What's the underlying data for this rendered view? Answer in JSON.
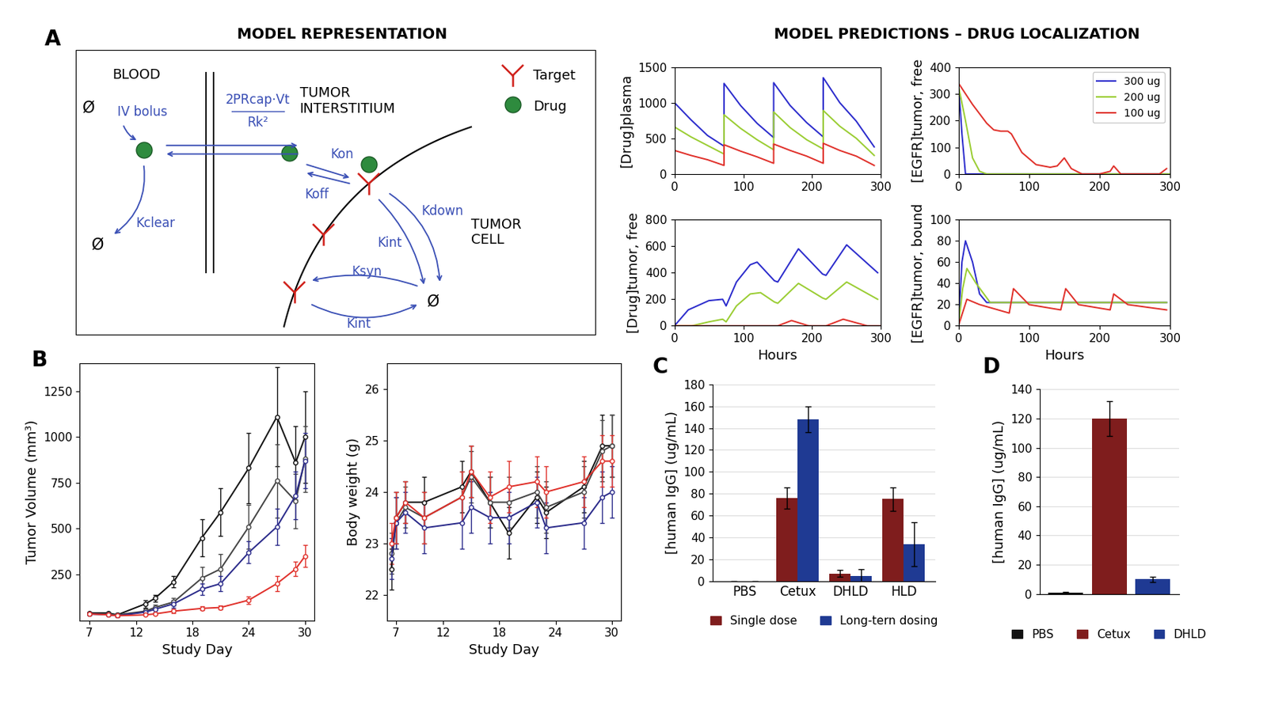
{
  "panel_labels": [
    "A",
    "B",
    "C",
    "D"
  ],
  "headers": [
    "MODEL REPRESENTATION",
    "MODEL PREDICTIONS – DRUG LOCALIZATION"
  ],
  "diagram": {
    "blood": "BLOOD",
    "interstitium": "TUMOR\nINTERSTITIUM",
    "cell": "TUMOR\nCELL",
    "key_target": "Target",
    "key_drug": "Drug",
    "bolus": "IV bolus",
    "null": "Ø",
    "transport_top": "2PRcap·Vt",
    "transport_bottom": "Rk²",
    "clear": "Kclear",
    "on": "Kon",
    "off": "Koff",
    "int_bound": "Kint",
    "down": "Kdown",
    "syn": "Ksyn",
    "int_free": "Kint"
  },
  "chart_data": [
    {
      "type": "line",
      "ylabel": "[Drug]plasma",
      "xlim": [
        0,
        300
      ],
      "xticks": [
        0,
        100,
        200,
        300
      ],
      "ylim": [
        0,
        1500
      ],
      "yticks": [
        0,
        500,
        1000,
        1500
      ],
      "x": [
        0,
        24,
        48,
        72,
        72,
        96,
        120,
        144,
        144,
        168,
        192,
        216,
        216,
        240,
        264,
        290
      ],
      "series": [
        {
          "color": "#2b2bcc",
          "values": [
            1000,
            760,
            540,
            390,
            1270,
            960,
            710,
            510,
            1280,
            960,
            720,
            520,
            1350,
            1000,
            740,
            380
          ]
        },
        {
          "color": "#9acd32",
          "values": [
            660,
            520,
            400,
            280,
            830,
            640,
            480,
            340,
            870,
            650,
            480,
            350,
            890,
            670,
            500,
            260
          ]
        },
        {
          "color": "#e0302a",
          "values": [
            330,
            260,
            200,
            120,
            410,
            320,
            240,
            150,
            420,
            330,
            250,
            150,
            430,
            330,
            250,
            120
          ]
        }
      ]
    },
    {
      "type": "line",
      "ylabel": "[EGFR]tumor, free",
      "xlim": [
        0,
        300
      ],
      "xticks": [
        0,
        100,
        200,
        300
      ],
      "ylim": [
        0,
        400
      ],
      "yticks": [
        0,
        100,
        200,
        300,
        400
      ],
      "legend": "upper right",
      "series": [
        {
          "name": "300 ug",
          "color": "#2b2bcc",
          "x": [
            0,
            5,
            10,
            20,
            300
          ],
          "values": [
            340,
            150,
            0,
            0,
            0
          ]
        },
        {
          "name": "200 ug",
          "color": "#9acd32",
          "x": [
            0,
            10,
            20,
            30,
            40,
            300
          ],
          "values": [
            330,
            200,
            60,
            10,
            0,
            0
          ]
        },
        {
          "name": "100 ug",
          "color": "#e0302a",
          "x": [
            0,
            20,
            40,
            50,
            60,
            70,
            75,
            90,
            110,
            130,
            140,
            150,
            160,
            175,
            200,
            215,
            220,
            230,
            260,
            285,
            295
          ],
          "values": [
            340,
            260,
            190,
            165,
            160,
            160,
            150,
            80,
            35,
            25,
            30,
            60,
            20,
            0,
            0,
            10,
            30,
            0,
            0,
            0,
            20
          ]
        }
      ]
    },
    {
      "type": "line",
      "ylabel": "[Drug]tumor, free",
      "xlabel": "Hours",
      "xlim": [
        0,
        300
      ],
      "xticks": [
        0,
        100,
        200,
        300
      ],
      "ylim": [
        0,
        800
      ],
      "yticks": [
        0,
        200,
        400,
        600,
        800
      ],
      "series": [
        {
          "color": "#2b2bcc",
          "x": [
            0,
            20,
            50,
            70,
            75,
            90,
            110,
            120,
            145,
            150,
            180,
            215,
            220,
            250,
            295
          ],
          "values": [
            0,
            120,
            190,
            200,
            150,
            330,
            460,
            480,
            340,
            330,
            580,
            390,
            380,
            610,
            400
          ]
        },
        {
          "color": "#9acd32",
          "x": [
            0,
            25,
            50,
            70,
            75,
            90,
            110,
            125,
            145,
            150,
            180,
            215,
            220,
            250,
            295
          ],
          "values": [
            0,
            0,
            30,
            50,
            30,
            150,
            240,
            250,
            180,
            170,
            320,
            210,
            200,
            330,
            200
          ]
        },
        {
          "color": "#e0302a",
          "x": [
            0,
            150,
            170,
            195,
            220,
            245,
            280,
            300
          ],
          "values": [
            0,
            0,
            40,
            0,
            0,
            50,
            0,
            0
          ]
        }
      ]
    },
    {
      "type": "line",
      "ylabel": "[EGFR]tumor, bound",
      "xlabel": "Hours",
      "xlim": [
        0,
        300
      ],
      "xticks": [
        0,
        100,
        200,
        300
      ],
      "ylim": [
        0,
        100
      ],
      "yticks": [
        0,
        20,
        40,
        60,
        80,
        100
      ],
      "series": [
        {
          "color": "#2b2bcc",
          "x": [
            0,
            5,
            10,
            20,
            30,
            40,
            295
          ],
          "values": [
            0,
            60,
            80,
            60,
            30,
            22,
            22
          ]
        },
        {
          "color": "#9acd32",
          "x": [
            0,
            6,
            12,
            25,
            45,
            295
          ],
          "values": [
            0,
            35,
            54,
            40,
            22,
            22
          ]
        },
        {
          "color": "#e0302a",
          "x": [
            0,
            12,
            30,
            72,
            78,
            100,
            145,
            152,
            170,
            215,
            220,
            240,
            295
          ],
          "values": [
            0,
            25,
            20,
            12,
            35,
            20,
            15,
            35,
            20,
            15,
            30,
            20,
            15
          ]
        }
      ]
    },
    {
      "type": "line",
      "xlabel": "Study Day",
      "ylabel": "Tumor Volume (mm³)",
      "marker": "circle",
      "xlim": [
        6,
        31
      ],
      "xticks": [
        7,
        12,
        18,
        24,
        30
      ],
      "ylim": [
        0,
        1400
      ],
      "yticks": [
        250,
        500,
        750,
        1000,
        1250
      ],
      "x": [
        7,
        9,
        10,
        13,
        14,
        16,
        19,
        21,
        24,
        27,
        29,
        30
      ],
      "series": [
        {
          "color": "#111111",
          "values": [
            40,
            40,
            30,
            90,
            120,
            210,
            450,
            590,
            830,
            1110,
            860,
            1000
          ],
          "errors": [
            5,
            5,
            5,
            20,
            20,
            30,
            100,
            130,
            190,
            270,
            200,
            250
          ]
        },
        {
          "color": "#444444",
          "values": [
            35,
            35,
            30,
            50,
            70,
            100,
            230,
            280,
            510,
            760,
            650,
            880
          ],
          "errors": [
            5,
            5,
            5,
            15,
            15,
            20,
            60,
            80,
            120,
            200,
            150,
            180
          ]
        },
        {
          "color": "#2a2a8a",
          "values": [
            35,
            30,
            25,
            45,
            60,
            90,
            170,
            200,
            370,
            510,
            680,
            870
          ],
          "errors": [
            5,
            5,
            5,
            10,
            15,
            20,
            30,
            40,
            60,
            100,
            130,
            150
          ]
        },
        {
          "color": "#e0302a",
          "values": [
            35,
            30,
            25,
            30,
            35,
            50,
            65,
            70,
            110,
            200,
            280,
            350
          ],
          "errors": [
            5,
            5,
            5,
            5,
            5,
            10,
            10,
            10,
            20,
            40,
            40,
            60
          ]
        }
      ]
    },
    {
      "type": "line",
      "xlabel": "Study Day",
      "ylabel": "Body weight (g)",
      "marker": "circle",
      "xlim": [
        6,
        31
      ],
      "xticks": [
        7,
        12,
        18,
        24,
        30
      ],
      "ylim": [
        21.5,
        26.5
      ],
      "yticks": [
        22,
        23,
        24,
        25,
        26
      ],
      "x": [
        6.5,
        7,
        8,
        10,
        14,
        15,
        17,
        19,
        22,
        23,
        27,
        29,
        30
      ],
      "series": [
        {
          "color": "#111111",
          "values": [
            22.5,
            23.5,
            23.8,
            23.8,
            24.1,
            24.4,
            23.8,
            23.2,
            23.9,
            23.6,
            24.1,
            24.9,
            24.9
          ],
          "errors": [
            0.4,
            0.5,
            0.4,
            0.5,
            0.5,
            0.5,
            0.5,
            0.5,
            0.5,
            0.5,
            0.5,
            0.6,
            0.6
          ]
        },
        {
          "color": "#444444",
          "values": [
            22.8,
            23.4,
            23.7,
            23.5,
            23.9,
            24.3,
            23.8,
            23.8,
            24.0,
            23.7,
            24.0,
            24.8,
            24.9
          ],
          "errors": [
            0.4,
            0.5,
            0.4,
            0.5,
            0.5,
            0.5,
            0.5,
            0.5,
            0.5,
            0.5,
            0.5,
            0.6,
            0.6
          ]
        },
        {
          "color": "#2a2a8a",
          "values": [
            22.7,
            23.4,
            23.6,
            23.3,
            23.4,
            23.7,
            23.5,
            23.5,
            23.8,
            23.3,
            23.4,
            23.9,
            24.0
          ],
          "errors": [
            0.4,
            0.5,
            0.4,
            0.5,
            0.5,
            0.5,
            0.5,
            0.5,
            0.5,
            0.5,
            0.5,
            0.5,
            0.5
          ]
        },
        {
          "color": "#e0302a",
          "values": [
            23.0,
            23.5,
            23.8,
            23.5,
            23.9,
            24.4,
            23.9,
            24.1,
            24.2,
            24.0,
            24.2,
            24.6,
            24.6
          ],
          "errors": [
            0.4,
            0.5,
            0.4,
            0.5,
            0.5,
            0.5,
            0.5,
            0.5,
            0.5,
            0.5,
            0.5,
            0.5,
            0.5
          ]
        }
      ]
    },
    {
      "type": "bar",
      "ylabel": "[human IgG] (ug/mL)",
      "categories": [
        "PBS",
        "Cetux",
        "DHLD",
        "HLD"
      ],
      "ylim": [
        0,
        180
      ],
      "yticks": [
        0,
        20,
        40,
        60,
        80,
        100,
        120,
        140,
        160,
        180
      ],
      "grid": true,
      "legend": "bottom",
      "series": [
        {
          "name": "Single dose",
          "color": "#7f1d1d",
          "values": [
            0,
            76,
            7,
            75
          ],
          "errors": [
            0,
            10,
            3,
            11
          ]
        },
        {
          "name": "Long-tern dosing",
          "color": "#1f3a93",
          "values": [
            0,
            148,
            5,
            34
          ],
          "errors": [
            0,
            12,
            6,
            20
          ]
        }
      ]
    },
    {
      "type": "bar",
      "ylabel": "[human IgG] (ug/mL)",
      "categories": [
        "PBS",
        "Cetux",
        "DHLD"
      ],
      "values": [
        1,
        120,
        10
      ],
      "errors": [
        0.5,
        12,
        2
      ],
      "colors": [
        "#111111",
        "#7f1d1d",
        "#1f3a93"
      ],
      "ylim": [
        0,
        140
      ],
      "yticks": [
        0,
        20,
        40,
        60,
        80,
        100,
        120,
        140
      ],
      "grid": true,
      "legend": "bottom",
      "tick_labels": "y"
    }
  ]
}
